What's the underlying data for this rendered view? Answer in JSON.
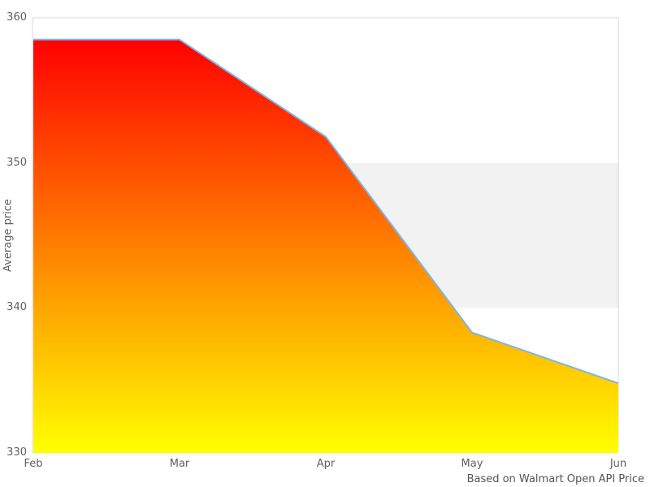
{
  "chart_data": {
    "type": "area",
    "title": "",
    "categories": [
      "Feb",
      "Mar",
      "Apr",
      "May",
      "Jun"
    ],
    "values": [
      358.5,
      358.5,
      351.8,
      338.3,
      334.8
    ],
    "xlabel": "",
    "ylabel": "Average price",
    "ylim": [
      330,
      360
    ],
    "yticks": [
      360,
      350,
      340,
      330
    ],
    "grid": "plot border top/left/right only, no inner gridlines visible",
    "legend": "none",
    "plot_band": {
      "from": 340,
      "to": 350,
      "color": "#f2f2f2"
    },
    "border_color": "#d8d8d8",
    "line_color": "#7cb5ec",
    "area_gradient": [
      "#ff0000",
      "#ffff00"
    ],
    "caption": "Based on Walmart Open API Price"
  }
}
